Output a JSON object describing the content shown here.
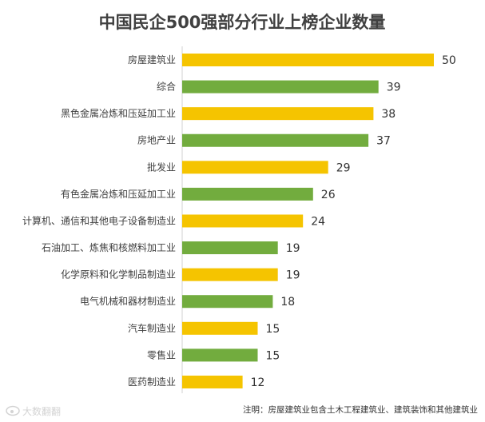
{
  "chart_data": {
    "type": "bar",
    "orientation": "horizontal",
    "title": "中国民企500强部分行业上榜企业数量",
    "categories": [
      "房屋建筑业",
      "综合",
      "黑色金属冶炼和压延加工业",
      "房地产业",
      "批发业",
      "有色金属冶炼和压延加工业",
      "计算机、通信和其他电子设备制造业",
      "石油加工、炼焦和核燃料加工业",
      "化学原料和化学制品制造业",
      "电气机械和器材制造业",
      "汽车制造业",
      "零售业",
      "医药制造业"
    ],
    "values": [
      50,
      39,
      38,
      37,
      29,
      26,
      24,
      19,
      19,
      18,
      15,
      15,
      12
    ],
    "bar_colors": [
      "#f5c400",
      "#72ac3e",
      "#f5c400",
      "#72ac3e",
      "#f5c400",
      "#72ac3e",
      "#f5c400",
      "#72ac3e",
      "#f5c400",
      "#72ac3e",
      "#f5c400",
      "#72ac3e",
      "#f5c400"
    ],
    "xlim": [
      0,
      50
    ],
    "grid": false,
    "legend": "none",
    "note": "注明：房屋建筑业包含土木工程建筑业、建筑装饰和其他建筑业"
  },
  "watermark": "大数翻翻",
  "watermark_icon": "weibo-icon"
}
